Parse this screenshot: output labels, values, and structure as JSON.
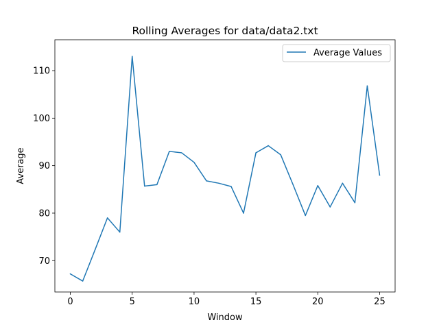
{
  "chart_data": {
    "type": "line",
    "title": "Rolling Averages for data/data2.txt",
    "xlabel": "Window",
    "ylabel": "Average",
    "xlim": [
      -1.25,
      26.25
    ],
    "ylim": [
      63.4,
      116.5
    ],
    "xticks": [
      0,
      5,
      10,
      15,
      20,
      25
    ],
    "yticks": [
      70,
      80,
      90,
      100,
      110
    ],
    "grid": false,
    "legend_position": "top-right",
    "x": [
      0,
      1,
      2,
      3,
      4,
      5,
      6,
      7,
      8,
      9,
      10,
      11,
      12,
      13,
      14,
      15,
      16,
      17,
      18,
      19,
      20,
      21,
      22,
      23,
      24,
      25
    ],
    "series": [
      {
        "name": "Average Values",
        "color": "#1f77b4",
        "values": [
          67.2,
          65.7,
          72.3,
          79.0,
          76.0,
          113.0,
          85.7,
          86.0,
          93.0,
          92.7,
          90.7,
          86.8,
          86.3,
          85.6,
          80.0,
          92.7,
          94.2,
          92.3,
          86.0,
          79.5,
          85.8,
          81.3,
          86.3,
          82.2,
          106.8,
          88.0
        ]
      }
    ]
  }
}
